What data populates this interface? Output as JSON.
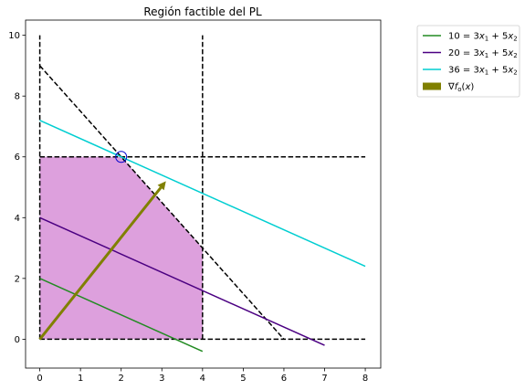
{
  "chart_data": {
    "type": "line",
    "title": "Región factible del PL",
    "xlabel": "",
    "ylabel": "",
    "xlim": [
      -0.35,
      8.38
    ],
    "ylim": [
      -0.95,
      10.5
    ],
    "xticks": [
      0,
      1,
      2,
      3,
      4,
      5,
      6,
      7,
      8
    ],
    "yticks": [
      0,
      2,
      4,
      6,
      8,
      10
    ],
    "grid": false,
    "legend_position": "outside-top-right",
    "feasible_region": {
      "color": "#dda0dd",
      "vertices": [
        [
          0,
          0
        ],
        [
          4,
          0
        ],
        [
          4,
          3
        ],
        [
          2,
          6
        ],
        [
          0,
          6
        ]
      ]
    },
    "constraint_lines": {
      "color": "#000000",
      "style": "dashed",
      "lines": [
        {
          "x": [
            0,
            0
          ],
          "y": [
            0,
            10
          ]
        },
        {
          "x": [
            4,
            4
          ],
          "y": [
            0,
            10
          ]
        },
        {
          "x": [
            0,
            8
          ],
          "y": [
            0,
            0
          ]
        },
        {
          "x": [
            0,
            8
          ],
          "y": [
            6,
            6
          ]
        },
        {
          "x": [
            0,
            6
          ],
          "y": [
            9,
            0
          ]
        }
      ]
    },
    "series": [
      {
        "name": "$10 = 3x_1 + 5x_2$",
        "label_parts": [
          "10 = 3",
          "x",
          "1",
          " + 5",
          "x",
          "2"
        ],
        "color": "#228b22",
        "x": [
          0,
          4
        ],
        "y": [
          2,
          -0.4
        ]
      },
      {
        "name": "$20 = 3x_1 + 5x_2$",
        "label_parts": [
          "20 = 3",
          "x",
          "1",
          " + 5",
          "x",
          "2"
        ],
        "color": "#4b0082",
        "x": [
          0,
          7
        ],
        "y": [
          4,
          -0.2
        ]
      },
      {
        "name": "$36 = 3x_1 + 5x_2$",
        "label_parts": [
          "36 = 3",
          "x",
          "1",
          " + 5",
          "x",
          "2"
        ],
        "color": "#00ced1",
        "x": [
          0,
          8
        ],
        "y": [
          7.2,
          2.4
        ]
      }
    ],
    "gradient_arrow": {
      "name": "$\\nabla f_o(x)$",
      "label_parts": [
        "∇",
        "f",
        "o",
        "(",
        "x",
        ")"
      ],
      "color": "#808000",
      "from": [
        0,
        0
      ],
      "to": [
        3.1,
        5.2
      ]
    },
    "optimal_point": {
      "x": 2,
      "y": 6,
      "color": "#0000cd"
    }
  }
}
